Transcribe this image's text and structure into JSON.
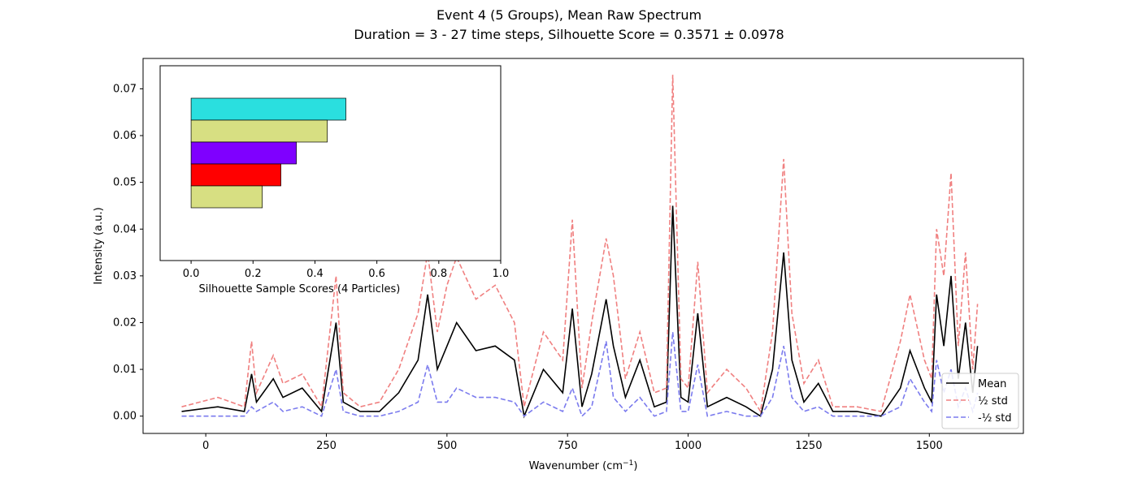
{
  "chart_data": [
    {
      "type": "line",
      "title_line1": "Event 4 (5 Groups), Mean Raw Spectrum",
      "title_line2": "Duration = 3 - 27 time steps, Silhouette Score = 0.3571 ± 0.0978",
      "xlabel": "Wavenumber (cm",
      "xlabel_sup": "−1",
      "xlabel_close": ")",
      "ylabel": "Intensity (a.u.)",
      "xlim": [
        -130,
        1695
      ],
      "ylim": [
        -0.0037,
        0.0765
      ],
      "xticks": [
        0,
        250,
        500,
        750,
        1000,
        1250,
        1500
      ],
      "yticks": [
        0.0,
        0.01,
        0.02,
        0.03,
        0.04,
        0.05,
        0.06,
        0.07
      ],
      "ytick_labels": [
        "0.00",
        "0.01",
        "0.02",
        "0.03",
        "0.04",
        "0.05",
        "0.06",
        "0.07"
      ],
      "legend_position": "lower right",
      "series": [
        {
          "name": "Mean",
          "color": "#000000",
          "style": "solid",
          "x": [
            -50,
            25,
            80,
            95,
            105,
            140,
            160,
            200,
            240,
            270,
            285,
            320,
            360,
            400,
            440,
            460,
            480,
            500,
            520,
            560,
            600,
            640,
            660,
            700,
            740,
            760,
            780,
            800,
            830,
            845,
            870,
            900,
            930,
            955,
            968,
            985,
            1000,
            1020,
            1040,
            1080,
            1120,
            1150,
            1175,
            1198,
            1215,
            1240,
            1270,
            1300,
            1350,
            1400,
            1440,
            1460,
            1490,
            1505,
            1515,
            1530,
            1545,
            1560,
            1575,
            1590,
            1600
          ],
          "y": [
            0.001,
            0.002,
            0.001,
            0.009,
            0.003,
            0.008,
            0.004,
            0.006,
            0.001,
            0.02,
            0.003,
            0.001,
            0.001,
            0.005,
            0.012,
            0.026,
            0.01,
            0.015,
            0.02,
            0.014,
            0.015,
            0.012,
            0.0,
            0.01,
            0.005,
            0.023,
            0.002,
            0.009,
            0.025,
            0.015,
            0.004,
            0.012,
            0.002,
            0.003,
            0.045,
            0.004,
            0.003,
            0.022,
            0.002,
            0.004,
            0.002,
            0.0,
            0.01,
            0.035,
            0.012,
            0.003,
            0.007,
            0.001,
            0.001,
            0.0,
            0.006,
            0.014,
            0.006,
            0.003,
            0.026,
            0.015,
            0.03,
            0.008,
            0.02,
            0.005,
            0.015
          ]
        },
        {
          "name": "½ std",
          "color": "#f08080",
          "style": "dashed",
          "x": [
            -50,
            25,
            80,
            95,
            105,
            140,
            160,
            200,
            240,
            270,
            285,
            320,
            360,
            400,
            440,
            460,
            480,
            500,
            520,
            560,
            600,
            640,
            660,
            700,
            740,
            760,
            780,
            800,
            830,
            845,
            870,
            900,
            930,
            955,
            968,
            985,
            1000,
            1020,
            1040,
            1080,
            1120,
            1150,
            1175,
            1198,
            1215,
            1240,
            1270,
            1300,
            1350,
            1400,
            1440,
            1460,
            1490,
            1505,
            1515,
            1530,
            1545,
            1560,
            1575,
            1590,
            1600
          ],
          "y": [
            0.002,
            0.004,
            0.002,
            0.016,
            0.005,
            0.013,
            0.007,
            0.009,
            0.002,
            0.03,
            0.005,
            0.002,
            0.003,
            0.01,
            0.022,
            0.035,
            0.018,
            0.028,
            0.034,
            0.025,
            0.028,
            0.02,
            0.002,
            0.018,
            0.012,
            0.042,
            0.006,
            0.02,
            0.038,
            0.03,
            0.008,
            0.018,
            0.005,
            0.006,
            0.073,
            0.008,
            0.006,
            0.033,
            0.005,
            0.01,
            0.006,
            0.001,
            0.018,
            0.055,
            0.022,
            0.007,
            0.012,
            0.002,
            0.002,
            0.001,
            0.016,
            0.026,
            0.012,
            0.008,
            0.04,
            0.03,
            0.052,
            0.015,
            0.035,
            0.01,
            0.024
          ]
        },
        {
          "name": "-½ std",
          "color": "#7b7bee",
          "style": "dashed",
          "x": [
            -50,
            25,
            80,
            95,
            105,
            140,
            160,
            200,
            240,
            270,
            285,
            320,
            360,
            400,
            440,
            460,
            480,
            500,
            520,
            560,
            600,
            640,
            660,
            700,
            740,
            760,
            780,
            800,
            830,
            845,
            870,
            900,
            930,
            955,
            968,
            985,
            1000,
            1020,
            1040,
            1080,
            1120,
            1150,
            1175,
            1198,
            1215,
            1240,
            1270,
            1300,
            1350,
            1400,
            1440,
            1460,
            1490,
            1505,
            1515,
            1530,
            1545,
            1560,
            1575,
            1590,
            1600
          ],
          "y": [
            0.0,
            0.0,
            0.0,
            0.002,
            0.001,
            0.003,
            0.001,
            0.002,
            0.0,
            0.01,
            0.001,
            0.0,
            0.0,
            0.001,
            0.003,
            0.011,
            0.003,
            0.003,
            0.006,
            0.004,
            0.004,
            0.003,
            0.0,
            0.003,
            0.001,
            0.006,
            0.0,
            0.002,
            0.016,
            0.004,
            0.001,
            0.004,
            0.0,
            0.001,
            0.018,
            0.001,
            0.001,
            0.011,
            0.0,
            0.001,
            0.0,
            0.0,
            0.004,
            0.015,
            0.004,
            0.001,
            0.002,
            0.0,
            0.0,
            0.0,
            0.002,
            0.008,
            0.003,
            0.001,
            0.012,
            0.005,
            0.01,
            0.002,
            0.006,
            0.001,
            0.005
          ]
        }
      ]
    },
    {
      "type": "bar",
      "orientation": "horizontal",
      "xlabel": "Silhouette Sample Scores (4 Particles)",
      "xlim": [
        -0.1,
        1.0
      ],
      "xticks": [
        0.0,
        0.2,
        0.4,
        0.6,
        0.8,
        1.0
      ],
      "xtick_labels": [
        "0.0",
        "0.2",
        "0.4",
        "0.6",
        "0.8",
        "1.0"
      ],
      "bars_top_to_bottom": [
        {
          "value": 0.5,
          "color": "#2adfdf"
        },
        {
          "value": 0.44,
          "color": "#d7df82"
        },
        {
          "value": 0.34,
          "color": "#7f00ff"
        },
        {
          "value": 0.29,
          "color": "#ff0000"
        },
        {
          "value": 0.23,
          "color": "#d7df82"
        }
      ]
    }
  ],
  "legend": {
    "entries": [
      {
        "label": "Mean",
        "color": "#000000",
        "style": "solid"
      },
      {
        "label": "½ std",
        "color": "#f08080",
        "style": "dashed"
      },
      {
        "label": "-½ std",
        "color": "#7b7bee",
        "style": "dashed"
      }
    ]
  }
}
